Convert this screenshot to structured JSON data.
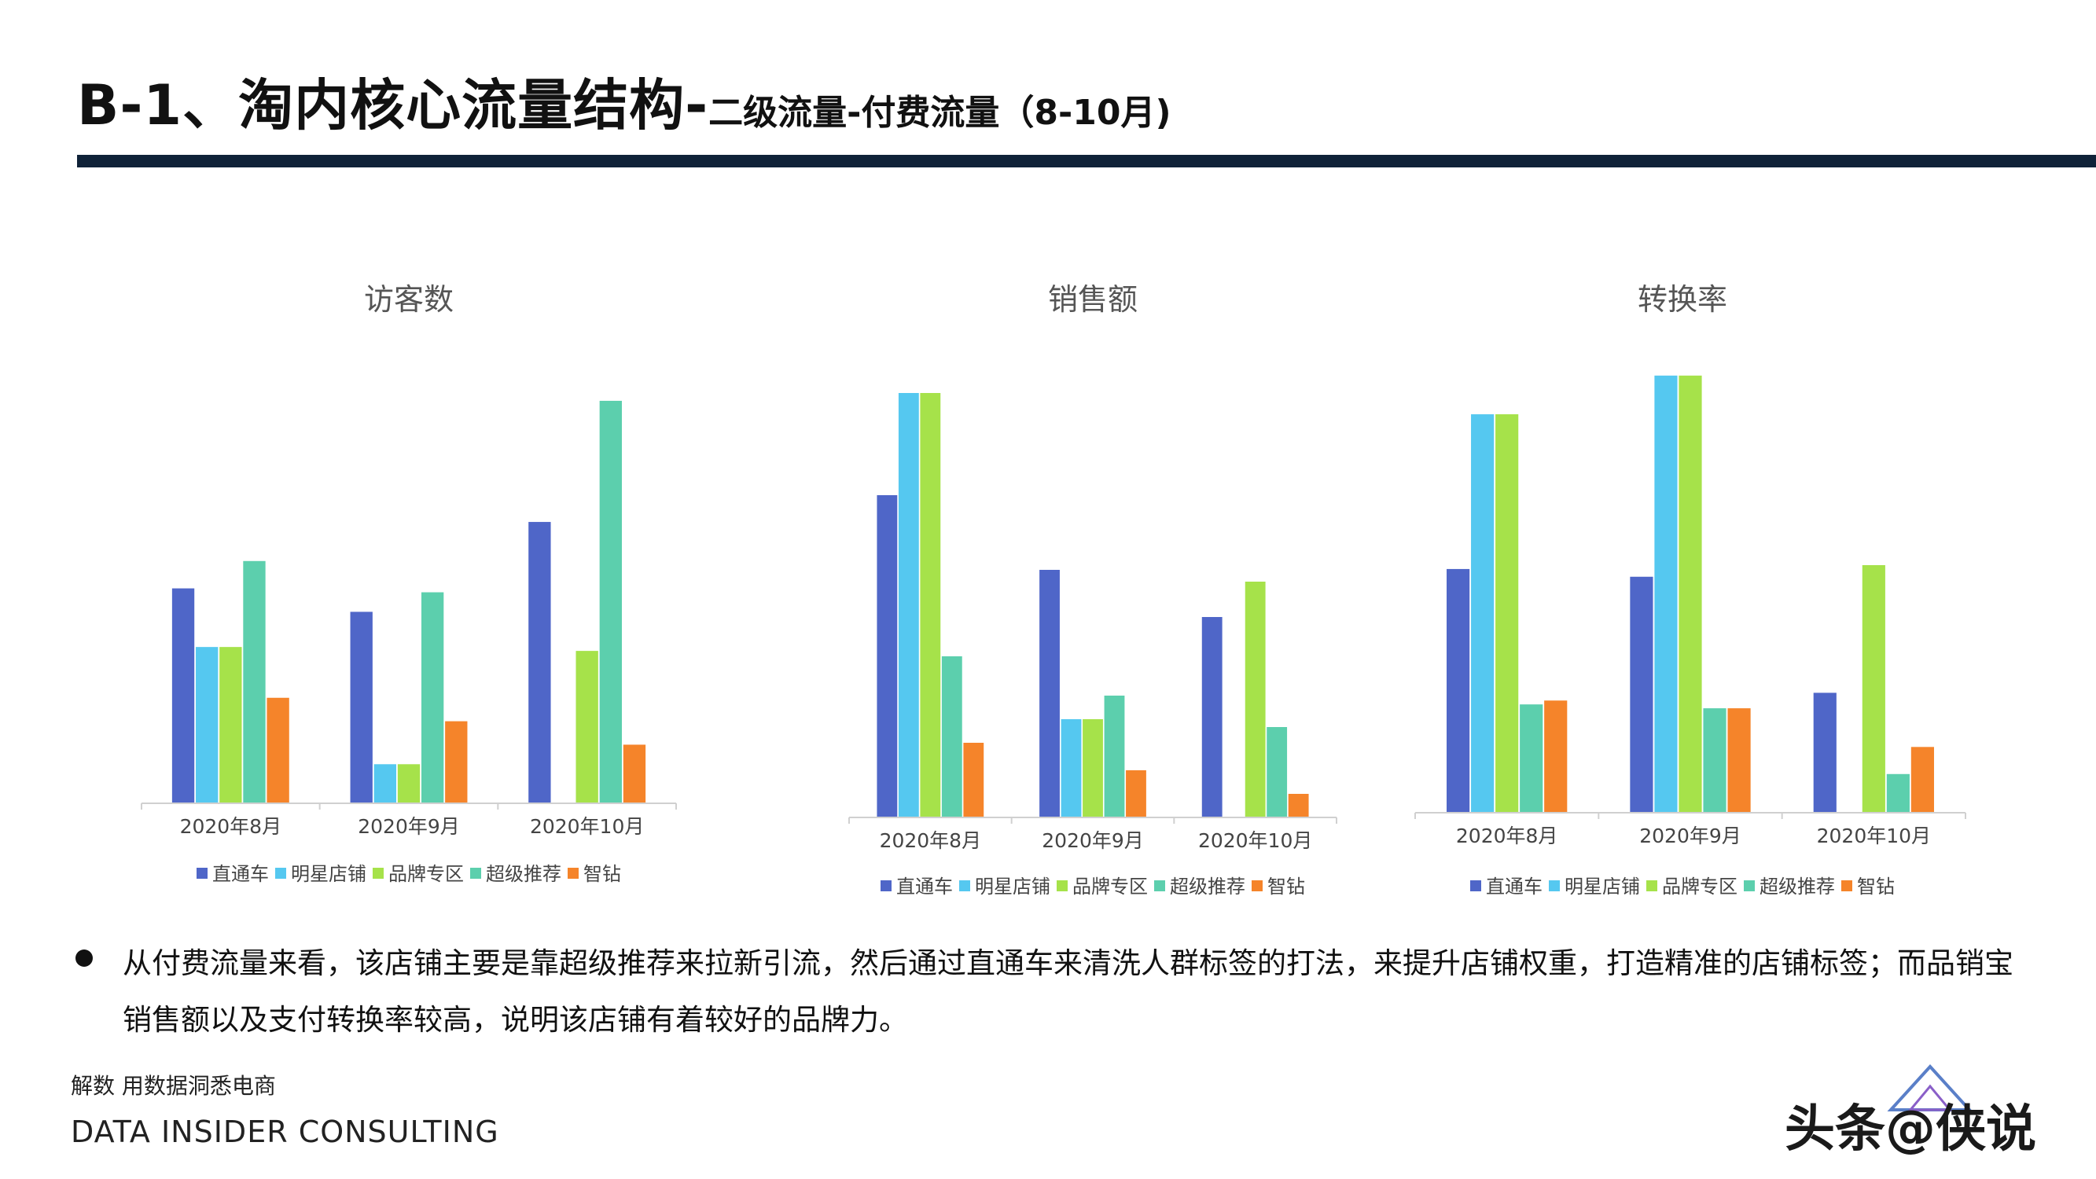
{
  "header": {
    "title_main": "B-1、淘内核心流量结构-",
    "title_sub": "二级流量-付费流量（8-10月)"
  },
  "colors": {
    "series": [
      "#4f66c8",
      "#55c8f0",
      "#a6e24a",
      "#5ccfad",
      "#f5842a"
    ],
    "header_bar": "#0f2238"
  },
  "chart_data": [
    {
      "type": "bar",
      "title": "访客数",
      "categories": [
        "2020年8月",
        "2020年9月",
        "2020年10月"
      ],
      "series": [
        {
          "name": "直通车",
          "values": [
            55,
            49,
            72
          ]
        },
        {
          "name": "明星店铺",
          "values": [
            40,
            10,
            0
          ]
        },
        {
          "name": "品牌专区",
          "values": [
            40,
            10,
            39
          ]
        },
        {
          "name": "超级推荐",
          "values": [
            62,
            54,
            103
          ]
        },
        {
          "name": "智钻",
          "values": [
            27,
            21,
            15
          ]
        }
      ],
      "ylim": [
        0,
        105
      ],
      "grid": false,
      "legend": "bottom"
    },
    {
      "type": "bar",
      "title": "销售额",
      "categories": [
        "2020年8月",
        "2020年9月",
        "2020年10月"
      ],
      "series": [
        {
          "name": "直通车",
          "values": [
            82,
            63,
            51
          ]
        },
        {
          "name": "明星店铺",
          "values": [
            108,
            25,
            0
          ]
        },
        {
          "name": "品牌专区",
          "values": [
            108,
            25,
            60
          ]
        },
        {
          "name": "超级推荐",
          "values": [
            41,
            31,
            23
          ]
        },
        {
          "name": "智钻",
          "values": [
            19,
            12,
            6
          ]
        }
      ],
      "ylim": [
        0,
        110
      ],
      "grid": false,
      "legend": "bottom"
    },
    {
      "type": "bar",
      "title": "转换率",
      "categories": [
        "2020年8月",
        "2020年9月",
        "2020年10月"
      ],
      "series": [
        {
          "name": "直通车",
          "values": [
            63,
            61,
            31
          ]
        },
        {
          "name": "明星店铺",
          "values": [
            103,
            113,
            0
          ]
        },
        {
          "name": "品牌专区",
          "values": [
            103,
            113,
            64
          ]
        },
        {
          "name": "超级推荐",
          "values": [
            28,
            27,
            10
          ]
        },
        {
          "name": "智钻",
          "values": [
            29,
            27,
            17
          ]
        }
      ],
      "ylim": [
        0,
        115
      ],
      "grid": false,
      "legend": "bottom"
    }
  ],
  "body": {
    "paragraph": "从付费流量来看，该店铺主要是靠超级推荐来拉新引流，然后通过直通车来清洗人群标签的打法，来提升店铺权重，打造精准的店铺标签；而品销宝销售额以及支付转换率较高，说明该店铺有着较好的品牌力。"
  },
  "footer": {
    "tagline": "解数 用数据洞悉电商",
    "company": "DATA INSIDER CONSULTING",
    "watermark": "头条@侠说"
  }
}
